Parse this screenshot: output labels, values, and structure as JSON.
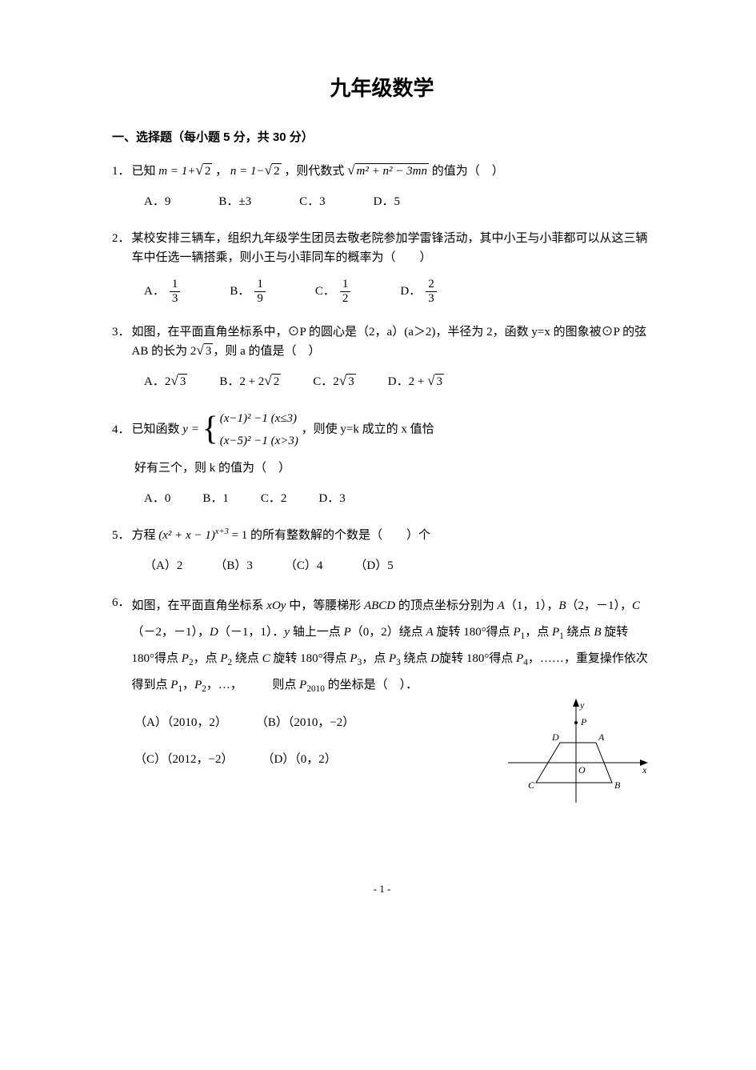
{
  "title": "九年级数学",
  "section_header": "一、选择题（每小题 5 分，共 30 分）",
  "q1": {
    "num": "1．",
    "pre": "已知",
    "m_expr_a": "m = 1+",
    "m_expr_rad": "2",
    "mid1": "，",
    "n_expr_a": "n = 1−",
    "n_expr_rad": "2",
    "mid2": "，则代数式",
    "main_rad": "m² + n² − 3mn",
    "post": "的值为（　）",
    "optA": "A．9",
    "optB": "B．±3",
    "optC": "C．3",
    "optD": "D．5"
  },
  "q2": {
    "num": "2．",
    "text": "某校安排三辆车，组织九年级学生团员去敬老院参加学雷锋活动，其中小王与小菲都可以从这三辆车中任选一辆搭乘，则小王与小菲同车的概率为（　　）",
    "optA": "A．",
    "fracA_n": "1",
    "fracA_d": "3",
    "optB": "B．",
    "fracB_n": "1",
    "fracB_d": "9",
    "optC": "C．",
    "fracC_n": "1",
    "fracC_d": "2",
    "optD": "D．",
    "fracD_n": "2",
    "fracD_d": "3"
  },
  "q3": {
    "num": "3．",
    "line1a": "如图，在平面直角坐标系中，⊙P 的圆心是（2，a）(a＞2)，半径为 2，函数 y=x 的图象被⊙P 的弦 AB 的长为",
    "chord_coef": "2",
    "chord_rad": "3",
    "line1b": "，则 a 的值是（　）",
    "optA_pre": "A．",
    "optA_coef": "2",
    "optA_rad": "3",
    "optB_pre": "B．",
    "optB_a": "2 + 2",
    "optB_rad": "2",
    "optC_pre": "C．",
    "optC_coef": "2",
    "optC_rad": "3",
    "optD_pre": "D．",
    "optD_a": "2 + ",
    "optD_rad": "3"
  },
  "q4": {
    "num": "4．",
    "pre": "已知函数 ",
    "y_eq": "y = ",
    "row1": "(x−1)² −1 (x≤3)",
    "row2": "(x−5)² −1 (x>3)",
    "post1": "，则使 y=k 成立的 x 值恰",
    "cont": "好有三个，则 k 的值为（　）",
    "optA": "A．0",
    "optB": "B．1",
    "optC": "C．2",
    "optD": "D．3"
  },
  "q5": {
    "num": "5．",
    "pre": "方程 ",
    "expr": "(x² + x − 1)",
    "exp": "x+3",
    "eq": " = 1",
    "post": " 的所有整数解的个数是（　　）个",
    "optA": "（A）2",
    "optB": "（B）3",
    "optC": "（C）4",
    "optD": "（D）5"
  },
  "q6": {
    "num": "6．",
    "text": "如图，在平面直角坐标系 <i>xOy</i> 中，等腰梯形 <i>ABCD</i> 的顶点坐标分别为 <i>A</i>（1，1），<i>B</i>（2，－1），<i>C</i>（－2，－1），<i>D</i>（－1，1）．<i>y</i> 轴上一点 <i>P</i>（0，2）绕点 <i>A</i> 旋转 180°得点 <i>P</i><sub>1</sub>，点 <i>P</i><sub>1</sub> 绕点 <i>B</i> 旋转 180°得点 <i>P</i><sub>2</sub>，点 <i>P</i><sub>2</sub> 绕点 <i>C</i> 旋转 180°得点 <i>P</i><sub>3</sub>，点 <i>P</i><sub>3</sub> 绕点 <i>D</i>旋转 180°得点 <i>P</i><sub>4</sub>，……，重复操作依次得到点 <i>P</i><sub>1</sub>，<i>P</i><sub>2</sub>，…，　　　则点 <i>P</i><sub>2010</sub> 的坐标是（　）．",
    "optA": "（A）（2010，2）",
    "optB": "（B）（2010，−2）",
    "optC": "（C）（2012，−2）",
    "optD": "（D）（0，2）",
    "fig_labels": {
      "y": "y",
      "x": "x",
      "P": "P",
      "A": "A",
      "B": "B",
      "C": "C",
      "D": "D",
      "O": "O"
    }
  },
  "page_num": "- 1 -",
  "style": {
    "text_color": "#000000",
    "bg_color": "#ffffff",
    "title_fontsize": 26,
    "body_fontsize": 15
  }
}
